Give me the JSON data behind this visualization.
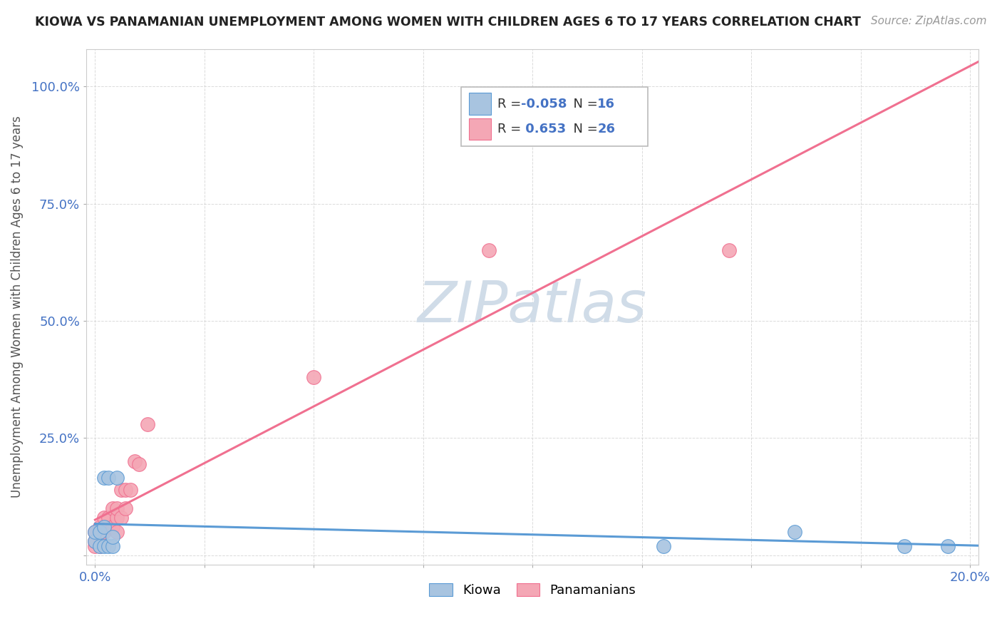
{
  "title": "KIOWA VS PANAMANIAN UNEMPLOYMENT AMONG WOMEN WITH CHILDREN AGES 6 TO 17 YEARS CORRELATION CHART",
  "source": "Source: ZipAtlas.com",
  "ylabel": "Unemployment Among Women with Children Ages 6 to 17 years",
  "xlim": [
    -0.002,
    0.202
  ],
  "ylim": [
    -0.02,
    1.08
  ],
  "xticks": [
    0.0,
    0.025,
    0.05,
    0.075,
    0.1,
    0.125,
    0.15,
    0.175,
    0.2
  ],
  "xticklabels": [
    "0.0%",
    "",
    "",
    "",
    "",
    "",
    "",
    "",
    "20.0%"
  ],
  "yticks": [
    0.0,
    0.25,
    0.5,
    0.75,
    1.0
  ],
  "yticklabels": [
    "",
    "25.0%",
    "50.0%",
    "75.0%",
    "100.0%"
  ],
  "kiowa_x": [
    0.0,
    0.0,
    0.001,
    0.001,
    0.002,
    0.002,
    0.002,
    0.003,
    0.003,
    0.004,
    0.004,
    0.005,
    0.13,
    0.16,
    0.185,
    0.195
  ],
  "kiowa_y": [
    0.03,
    0.05,
    0.02,
    0.05,
    0.02,
    0.06,
    0.165,
    0.02,
    0.165,
    0.02,
    0.04,
    0.165,
    0.02,
    0.05,
    0.02,
    0.02
  ],
  "panamanian_x": [
    0.0,
    0.0,
    0.0,
    0.001,
    0.001,
    0.001,
    0.002,
    0.002,
    0.003,
    0.003,
    0.004,
    0.004,
    0.005,
    0.005,
    0.005,
    0.006,
    0.006,
    0.007,
    0.007,
    0.008,
    0.009,
    0.01,
    0.012,
    0.05,
    0.09,
    0.145
  ],
  "panamanian_y": [
    0.02,
    0.03,
    0.05,
    0.02,
    0.04,
    0.06,
    0.05,
    0.08,
    0.06,
    0.08,
    0.06,
    0.1,
    0.05,
    0.08,
    0.1,
    0.08,
    0.14,
    0.1,
    0.14,
    0.14,
    0.2,
    0.195,
    0.28,
    0.38,
    0.65,
    0.65
  ],
  "kiowa_color": "#a8c4e0",
  "panamanian_color": "#f4a7b5",
  "kiowa_line_color": "#5b9bd5",
  "panamanian_line_color": "#f07090",
  "kiowa_R": "-0.058",
  "kiowa_N": "16",
  "panamanian_R": "0.653",
  "panamanian_N": "26",
  "r_value_color": "#4472c4",
  "watermark_color": "#d0dce8",
  "background_color": "#ffffff",
  "grid_color": "#cccccc"
}
